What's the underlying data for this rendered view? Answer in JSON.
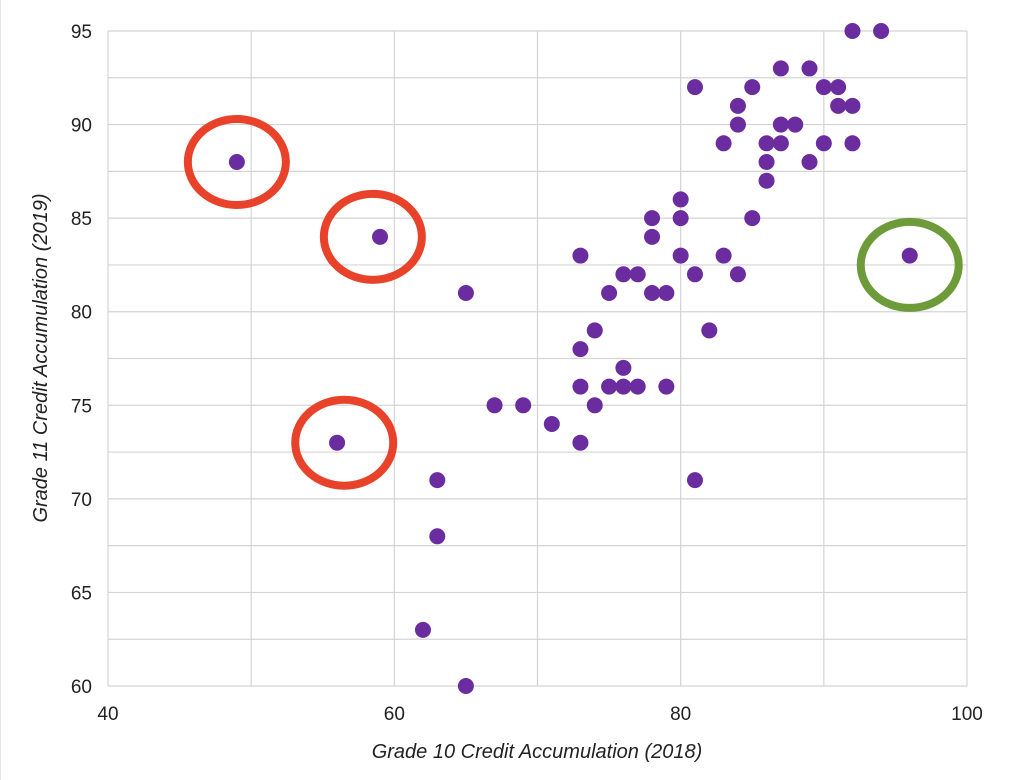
{
  "chart_data": {
    "type": "scatter",
    "title": "",
    "xlabel": "Grade 10 Credit Accumulation (2018)",
    "ylabel": "Grade 11 Credit Accumulation (2019)",
    "xlim": [
      40,
      100
    ],
    "ylim": [
      60,
      95
    ],
    "xticks": [
      40,
      60,
      80,
      100
    ],
    "yticks": [
      60,
      65,
      70,
      75,
      80,
      85,
      90,
      95
    ],
    "grid": true,
    "legend": "none",
    "colors": {
      "points": "#6a2c9e",
      "outlier_low": "#e8432a",
      "outlier_high": "#6e9b3a",
      "grid": "#d4d4d4"
    },
    "series": [
      {
        "points": [
          [
            49,
            88
          ],
          [
            59,
            84
          ],
          [
            56,
            73
          ],
          [
            65,
            81
          ],
          [
            65,
            60
          ],
          [
            62,
            63
          ],
          [
            63,
            71
          ],
          [
            63,
            68
          ],
          [
            67,
            75
          ],
          [
            69,
            75
          ],
          [
            71,
            74
          ],
          [
            73,
            83
          ],
          [
            73,
            78
          ],
          [
            73,
            76
          ],
          [
            73,
            73
          ],
          [
            74,
            79
          ],
          [
            74,
            75
          ],
          [
            75,
            81
          ],
          [
            75,
            76
          ],
          [
            76,
            82
          ],
          [
            76,
            77
          ],
          [
            76,
            76
          ],
          [
            77,
            82
          ],
          [
            77,
            76
          ],
          [
            78,
            85
          ],
          [
            78,
            84
          ],
          [
            78,
            81
          ],
          [
            79,
            81
          ],
          [
            79,
            76
          ],
          [
            80,
            86
          ],
          [
            80,
            85
          ],
          [
            80,
            83
          ],
          [
            81,
            92
          ],
          [
            81,
            82
          ],
          [
            81,
            71
          ],
          [
            82,
            79
          ],
          [
            83,
            89
          ],
          [
            83,
            83
          ],
          [
            84,
            91
          ],
          [
            84,
            90
          ],
          [
            84,
            82
          ],
          [
            85,
            92
          ],
          [
            85,
            85
          ],
          [
            86,
            89
          ],
          [
            86,
            88
          ],
          [
            86,
            87
          ],
          [
            87,
            93
          ],
          [
            87,
            90
          ],
          [
            87,
            89
          ],
          [
            88,
            90
          ],
          [
            89,
            93
          ],
          [
            89,
            88
          ],
          [
            90,
            92
          ],
          [
            90,
            89
          ],
          [
            91,
            92
          ],
          [
            91,
            91
          ],
          [
            92,
            95
          ],
          [
            92,
            91
          ],
          [
            92,
            89
          ],
          [
            94,
            95
          ],
          [
            96,
            83
          ]
        ]
      }
    ],
    "annotations": [
      {
        "shape": "circle",
        "color": "outlier_low",
        "center": [
          49,
          88
        ]
      },
      {
        "shape": "circle",
        "color": "outlier_low",
        "center": [
          58.5,
          84
        ]
      },
      {
        "shape": "circle",
        "color": "outlier_low",
        "center": [
          56.5,
          73
        ]
      },
      {
        "shape": "circle",
        "color": "outlier_high",
        "center": [
          96,
          82.5
        ]
      }
    ]
  }
}
